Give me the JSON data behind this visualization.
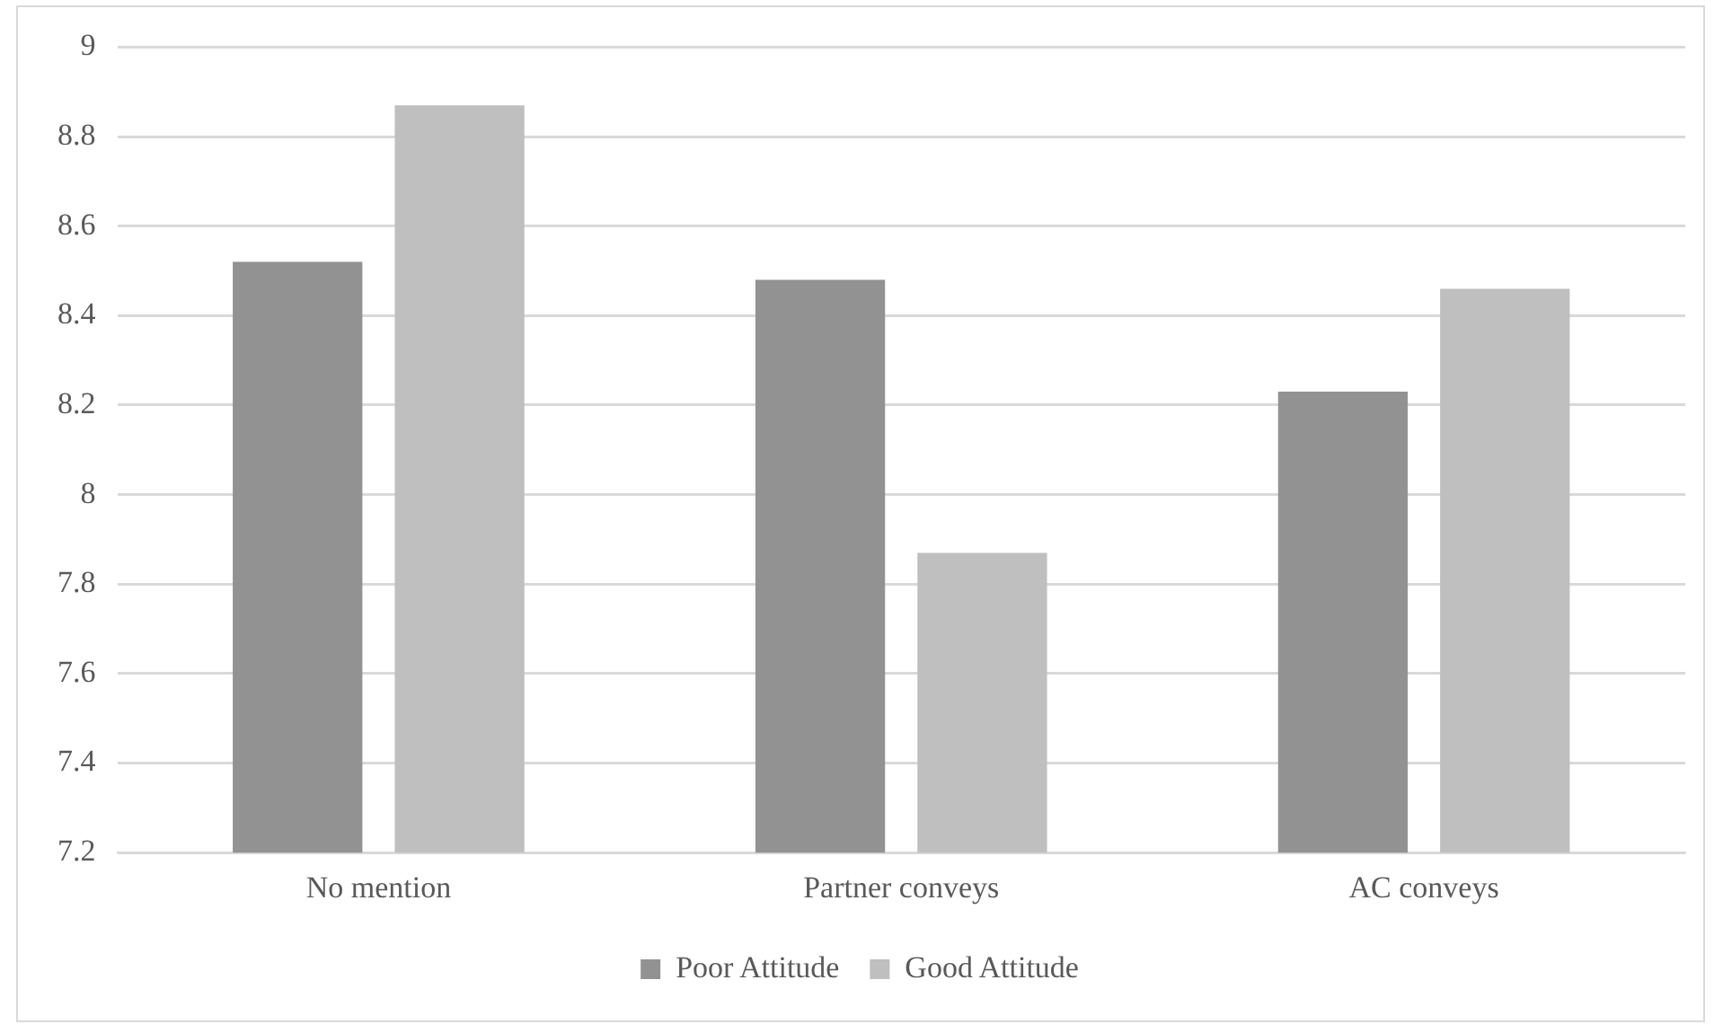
{
  "chart_data": {
    "type": "bar",
    "categories": [
      "No mention",
      "Partner conveys",
      "AC conveys"
    ],
    "series": [
      {
        "name": "Poor Attitude",
        "color": "#929292",
        "values": [
          8.52,
          8.48,
          8.23
        ]
      },
      {
        "name": "Good Attitude",
        "color": "#bfbfbf",
        "values": [
          8.87,
          7.87,
          8.46
        ]
      }
    ],
    "ylim": [
      7.2,
      9
    ],
    "yticks": [
      7.2,
      7.4,
      7.6,
      7.8,
      8,
      8.2,
      8.4,
      8.6,
      8.8,
      9
    ],
    "grid": "y",
    "legend": "bottom"
  }
}
